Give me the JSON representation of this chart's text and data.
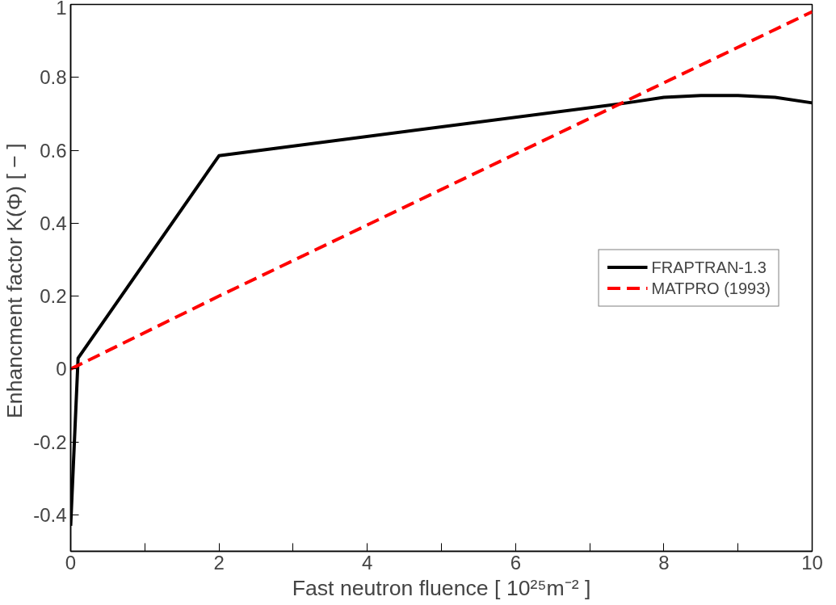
{
  "chart_data": {
    "type": "line",
    "xlabel": "Fast neutron fluence [ 10²⁵m⁻² ]",
    "ylabel": "Enhancment factor K(Φ)  [ − ]",
    "xlim": [
      0,
      10
    ],
    "ylim": [
      -0.5,
      1
    ],
    "xticks": [
      0,
      {
        "value": 1,
        "label": null
      },
      2,
      {
        "value": 3,
        "label": null
      },
      4,
      {
        "value": 5,
        "label": null
      },
      6,
      {
        "value": 7,
        "label": null
      },
      8,
      {
        "value": 9,
        "label": null
      },
      10
    ],
    "yticks": [
      {
        "value": -0.4,
        "label": "-0.4"
      },
      {
        "value": -0.2,
        "label": "-0.2"
      },
      0,
      {
        "value": 0.2,
        "label": "0.2"
      },
      {
        "value": 0.4,
        "label": "0.4"
      },
      {
        "value": 0.6,
        "label": "0.6"
      },
      {
        "value": 0.8,
        "label": "0.8"
      },
      1
    ],
    "grid": false,
    "legend": "right",
    "series": [
      {
        "name": "FRAPTRAN-1.3",
        "color": "#000000",
        "line_style": "solid",
        "x": [
          0,
          0.1,
          2,
          7.5,
          8,
          8.5,
          9,
          9.5,
          10
        ],
        "values": [
          -0.43,
          0.03,
          0.585,
          0.73,
          0.745,
          0.75,
          0.75,
          0.745,
          0.73
        ]
      },
      {
        "name": "MATPRO (1993)",
        "color": "#ff0000",
        "line_style": "dashed",
        "x": [
          0,
          2,
          4,
          6,
          8,
          10
        ],
        "values": [
          0,
          0.2,
          0.395,
          0.59,
          0.785,
          0.98
        ]
      }
    ]
  }
}
